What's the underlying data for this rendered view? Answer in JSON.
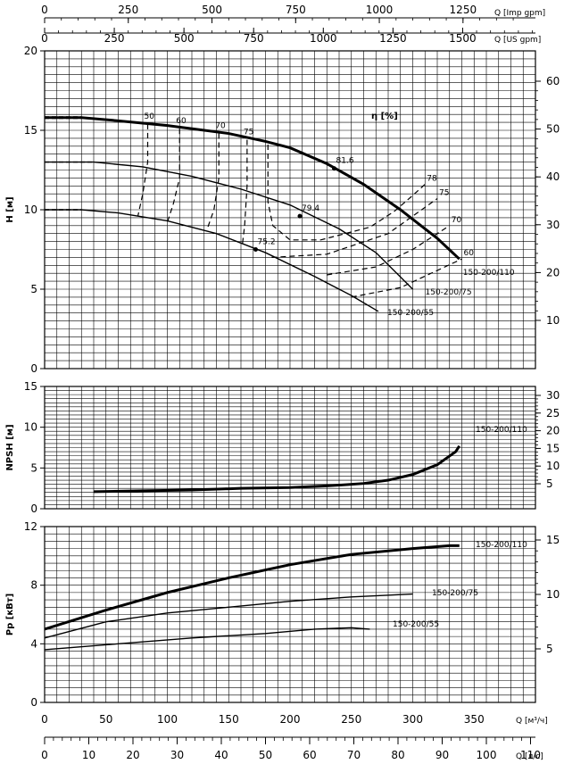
{
  "chart_data": {
    "type": "line",
    "flow_axes": {
      "imp_gpm": {
        "label": "Q [Imp gpm]",
        "ticks": [
          "0",
          "250",
          "500",
          "750",
          "1000",
          "1250"
        ],
        "range": [
          0,
          1250
        ]
      },
      "us_gpm": {
        "label": "Q [US gpm]",
        "ticks": [
          "0",
          "250",
          "500",
          "750",
          "1000",
          "1250",
          "1500"
        ],
        "range": [
          0,
          1500
        ]
      },
      "m3h": {
        "label": "Q [м³/ч]",
        "ticks": [
          "0",
          "50",
          "100",
          "150",
          "200",
          "250",
          "300",
          "350"
        ],
        "range": [
          0,
          400
        ]
      },
      "ls": {
        "label": "Q [л/с]",
        "ticks": [
          "0",
          "10",
          "20",
          "30",
          "40",
          "50",
          "60",
          "70",
          "80",
          "90",
          "100",
          "110"
        ],
        "range": [
          0,
          111
        ]
      }
    },
    "panels": [
      {
        "id": "head",
        "ylabel": "H [м]",
        "ylim": [
          0,
          20
        ],
        "yticks": [
          "0",
          "5",
          "10",
          "15",
          "20"
        ],
        "right_ticks": [
          "10",
          "20",
          "30",
          "40",
          "50",
          "60"
        ],
        "efficiency_label": "η [%]",
        "series": [
          {
            "name": "150-200/110",
            "x": [
              0,
              30,
              60,
              100,
              150,
              180,
              200,
              230,
              260,
              290,
              320,
              338
            ],
            "y": [
              15.8,
              15.8,
              15.6,
              15.3,
              14.8,
              14.3,
              13.9,
              12.9,
              11.6,
              10.0,
              8.2,
              6.9
            ]
          },
          {
            "name": "150-200/75",
            "x": [
              0,
              40,
              80,
              120,
              160,
              200,
              240,
              270,
              300
            ],
            "y": [
              13.0,
              13.0,
              12.7,
              12.1,
              11.3,
              10.3,
              8.8,
              7.3,
              5.0
            ]
          },
          {
            "name": "150-200/55",
            "x": [
              0,
              30,
              60,
              100,
              140,
              180,
              220,
              250,
              272
            ],
            "y": [
              10.0,
              10.0,
              9.8,
              9.3,
              8.5,
              7.3,
              5.8,
              4.6,
              3.6
            ]
          }
        ],
        "efficiency_contours": [
          {
            "label": "50",
            "x": [
              84,
              84,
              80,
              76
            ],
            "y": [
              15.4,
              13.0,
              11.0,
              9.6
            ]
          },
          {
            "label": "60",
            "x": [
              110,
              110,
              105,
              100
            ],
            "y": [
              15.1,
              12.0,
              10.4,
              9.2
            ]
          },
          {
            "label": "70",
            "x": [
              142,
              142,
              138,
              133
            ],
            "y": [
              14.8,
              12.0,
              10.0,
              8.9
            ]
          },
          {
            "label": "75",
            "x": [
              165,
              165,
              163,
              161
            ],
            "y": [
              14.4,
              11.5,
              9.0,
              7.7
            ]
          },
          {
            "label": "78",
            "x": [
              182,
              182,
              186,
              200,
              225,
              265,
              285,
              300,
              310
            ],
            "y": [
              14.1,
              10.5,
              9.0,
              8.1,
              8.1,
              8.9,
              9.9,
              10.9,
              11.6
            ]
          },
          {
            "label": "75",
            "x": [
              185,
              230,
              280,
              320
            ],
            "y": [
              7.0,
              7.2,
              8.5,
              10.7
            ]
          },
          {
            "label": "70",
            "x": [
              230,
              270,
              300,
              330
            ],
            "y": [
              5.9,
              6.4,
              7.5,
              9.0
            ]
          },
          {
            "label": "60",
            "x": [
              250,
              290,
              340
            ],
            "y": [
              4.5,
              5.1,
              6.9
            ]
          }
        ],
        "bep_points": [
          {
            "label": "81.6",
            "x": 236,
            "y": 12.6
          },
          {
            "label": "79.4",
            "x": 208,
            "y": 9.6
          },
          {
            "label": "75.2",
            "x": 172,
            "y": 7.5
          }
        ]
      },
      {
        "id": "npsh",
        "ylabel": "NPSH [м]",
        "ylim": [
          0,
          15
        ],
        "yticks": [
          "0",
          "5",
          "10",
          "15"
        ],
        "right_ticks": [
          "5",
          "10",
          "15",
          "20",
          "25",
          "30"
        ],
        "series": [
          {
            "name": "150-200/110",
            "x": [
              40,
              80,
              120,
              160,
              200,
              230,
              260,
              280,
              300,
              320,
              335,
              338
            ],
            "y": [
              2.1,
              2.2,
              2.3,
              2.5,
              2.6,
              2.8,
              3.1,
              3.5,
              4.2,
              5.4,
              7.0,
              7.7
            ]
          }
        ]
      },
      {
        "id": "power",
        "ylabel": "Pp [кВт]",
        "ylim": [
          0,
          12
        ],
        "yticks": [
          "0",
          "4",
          "8",
          "12"
        ],
        "yminor": [
          "",
          "",
          "",
          ""
        ],
        "right_ticks": [
          "5",
          "10",
          "15"
        ],
        "series": [
          {
            "name": "150-200/110",
            "x": [
              0,
              50,
              100,
              150,
              200,
              250,
              300,
              330,
              338
            ],
            "y": [
              5.0,
              6.3,
              7.5,
              8.5,
              9.4,
              10.1,
              10.5,
              10.7,
              10.7
            ]
          },
          {
            "name": "150-200/75",
            "x": [
              0,
              50,
              100,
              150,
              200,
              250,
              300
            ],
            "y": [
              4.4,
              5.5,
              6.1,
              6.5,
              6.9,
              7.2,
              7.4
            ]
          },
          {
            "name": "150-200/55",
            "x": [
              0,
              60,
              120,
              180,
              220,
              250,
              265
            ],
            "y": [
              3.6,
              4.0,
              4.4,
              4.7,
              5.0,
              5.1,
              5.0
            ]
          }
        ]
      }
    ]
  }
}
